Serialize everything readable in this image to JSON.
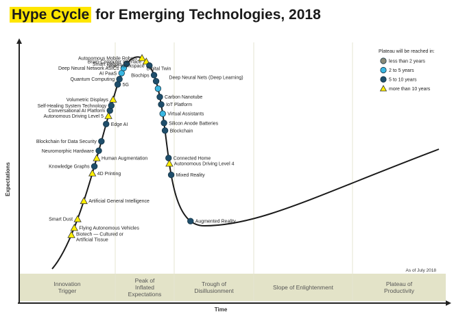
{
  "title": {
    "highlight": "Hype Cycle",
    "rest": " for Emerging Technologies, 2018"
  },
  "chart_data": {
    "type": "scatter",
    "title": "Hype Cycle for Emerging Technologies, 2018",
    "xlabel": "Time",
    "ylabel": "Expectations",
    "as_of": "As of July 2018",
    "phases": [
      "Innovation Trigger",
      "Peak of Inflated Expectations",
      "Trough of Disillusionment",
      "Slope of Enlightenment",
      "Plateau of Productivity"
    ],
    "legend": {
      "title": "Plateau will be reached in:",
      "placement": "top-right",
      "items": [
        {
          "key": "lt2",
          "label": "less than 2 years",
          "color": "#8a8a78",
          "shape": "circle"
        },
        {
          "key": "2to5",
          "label": "2 to 5 years",
          "color": "#39b7e2",
          "shape": "circle"
        },
        {
          "key": "5to10",
          "label": "5 to 10 years",
          "color": "#1f4e6b",
          "shape": "circle"
        },
        {
          "key": "gt10",
          "label": "more than 10 years",
          "color": "#ffee00",
          "shape": "triangle"
        }
      ]
    },
    "points": [
      {
        "name": "Biotech — Cultured or Artificial Tissue",
        "pos": 0.092,
        "cat": "gt10"
      },
      {
        "name": "Flying Autonomous Vehicles",
        "pos": 0.11,
        "cat": "gt10"
      },
      {
        "name": "Smart Dust",
        "pos": 0.132,
        "cat": "gt10"
      },
      {
        "name": "Artificial General Intelligence",
        "pos": 0.177,
        "cat": "gt10"
      },
      {
        "name": "4D Printing",
        "pos": 0.245,
        "cat": "gt10"
      },
      {
        "name": "Knowledge Graphs",
        "pos": 0.262,
        "cat": "5to10"
      },
      {
        "name": "Human Augmentation",
        "pos": 0.282,
        "cat": "gt10"
      },
      {
        "name": "Neuromorphic Hardware",
        "pos": 0.3,
        "cat": "5to10"
      },
      {
        "name": "Blockchain for Data Security",
        "pos": 0.323,
        "cat": "5to10"
      },
      {
        "name": "Edge AI",
        "pos": 0.365,
        "cat": "5to10"
      },
      {
        "name": "Autonomous Driving Level 5",
        "pos": 0.385,
        "cat": "gt10"
      },
      {
        "name": "Conversational AI Platform",
        "pos": 0.398,
        "cat": "5to10"
      },
      {
        "name": "Self-Healing System Technology",
        "pos": 0.41,
        "cat": "5to10"
      },
      {
        "name": "Volumetric Displays",
        "pos": 0.425,
        "cat": "gt10"
      },
      {
        "name": "5G",
        "pos": 0.462,
        "cat": "5to10"
      },
      {
        "name": "Quantum Computing",
        "pos": 0.475,
        "cat": "5to10"
      },
      {
        "name": "AI PaaS",
        "pos": 0.49,
        "cat": "2to5"
      },
      {
        "name": "Deep Neural Network ASICs",
        "pos": 0.503,
        "cat": "2to5"
      },
      {
        "name": "Smart Robots",
        "pos": 0.515,
        "cat": "5to10"
      },
      {
        "name": "Autonomous Mobile Robots",
        "pos": 0.557,
        "cat": "gt10"
      },
      {
        "name": "Brain-Computer Interface",
        "pos": 0.57,
        "cat": "gt10"
      },
      {
        "name": "Smart Workspace",
        "pos": 0.582,
        "cat": "5to10"
      },
      {
        "name": "Biochips",
        "pos": 0.607,
        "cat": "5to10"
      },
      {
        "name": "Digital Twin",
        "pos": 0.622,
        "cat": "5to10"
      },
      {
        "name": "Deep Neural Nets (Deep Learning)",
        "pos": 0.64,
        "cat": "2to5"
      },
      {
        "name": "Carbon Nanotube",
        "pos": 0.66,
        "cat": "5to10"
      },
      {
        "name": "IoT Platform",
        "pos": 0.678,
        "cat": "5to10"
      },
      {
        "name": "Virtual Assistants",
        "pos": 0.7,
        "cat": "2to5"
      },
      {
        "name": "Silicon Anode Batteries",
        "pos": 0.722,
        "cat": "5to10"
      },
      {
        "name": "Blockchain",
        "pos": 0.74,
        "cat": "5to10"
      },
      {
        "name": "Connected Home",
        "pos": 0.805,
        "cat": "5to10"
      },
      {
        "name": "Autonomous Driving Level 4",
        "pos": 0.818,
        "cat": "gt10"
      },
      {
        "name": "Mixed Reality",
        "pos": 0.845,
        "cat": "5to10"
      },
      {
        "name": "Augmented Reality",
        "pos": 0.965,
        "cat": "5to10"
      }
    ]
  }
}
